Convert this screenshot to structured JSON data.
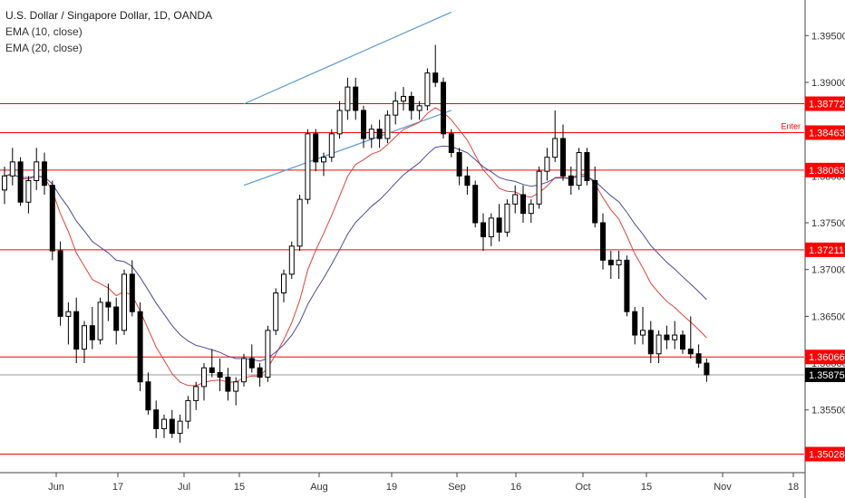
{
  "legend": {
    "title": "U.S. Dollar / Singapore Dollar, 1D, OANDA",
    "ema1": "EMA (10, close)",
    "ema2": "EMA (20, close)"
  },
  "colors": {
    "up": "#000000",
    "down": "#000000",
    "hline": "#ff0000",
    "ema_fast": "#e0433a",
    "ema_slow": "#4a4a9c",
    "channel": "#5b9bd5",
    "last_price_line": "#999999",
    "axis": "#444444"
  },
  "chart_data": {
    "type": "candlestick",
    "symbol": "U.S. Dollar / Singapore Dollar",
    "timeframe": "1D",
    "ylim": [
      1.3483,
      1.3988
    ],
    "x_ticks": [
      "Jun",
      "17",
      "Jul",
      "15",
      "Aug",
      "19",
      "Sep",
      "16",
      "Oct",
      "15",
      "Nov",
      "18"
    ],
    "y_ticks": [
      "1.39500",
      "1.39000",
      "1.38500",
      "1.38000",
      "1.37500",
      "1.37000",
      "1.36500",
      "1.36000",
      "1.35500"
    ],
    "y_tick_values": [
      1.395,
      1.39,
      1.385,
      1.38,
      1.375,
      1.37,
      1.365,
      1.36,
      1.355
    ],
    "levels": [
      {
        "value": 1.38772,
        "label": "1.38772"
      },
      {
        "value": 1.38463,
        "label": "1.38463",
        "annotation": "Enter"
      },
      {
        "value": 1.38063,
        "label": "1.38063"
      },
      {
        "value": 1.37211,
        "label": "1.37211"
      },
      {
        "value": 1.36066,
        "label": "1.36066"
      },
      {
        "value": 1.35028,
        "label": "1.35028"
      }
    ],
    "last_price": {
      "value": 1.35875,
      "label": "1.35875"
    },
    "channel": [
      {
        "from": [
          30,
          1.3877
        ],
        "to": [
          56,
          1.3975
        ]
      },
      {
        "from": [
          30,
          1.379
        ],
        "to": [
          56,
          1.387
        ]
      }
    ],
    "ohlc": [
      [
        1.3785,
        1.381,
        1.377,
        1.38
      ],
      [
        1.38,
        1.383,
        1.379,
        1.3815
      ],
      [
        1.3815,
        1.382,
        1.3768,
        1.3772
      ],
      [
        1.3772,
        1.38,
        1.376,
        1.3795
      ],
      [
        1.3795,
        1.383,
        1.3785,
        1.3815
      ],
      [
        1.3815,
        1.3825,
        1.378,
        1.379
      ],
      [
        1.379,
        1.3795,
        1.371,
        1.372
      ],
      [
        1.372,
        1.373,
        1.364,
        1.365
      ],
      [
        1.365,
        1.3665,
        1.362,
        1.3655
      ],
      [
        1.3655,
        1.367,
        1.36,
        1.3615
      ],
      [
        1.3615,
        1.3645,
        1.36,
        1.364
      ],
      [
        1.364,
        1.366,
        1.3615,
        1.3625
      ],
      [
        1.3625,
        1.367,
        1.362,
        1.3665
      ],
      [
        1.3665,
        1.3685,
        1.3645,
        1.366
      ],
      [
        1.366,
        1.367,
        1.362,
        1.3635
      ],
      [
        1.3635,
        1.37,
        1.363,
        1.3695
      ],
      [
        1.3695,
        1.371,
        1.365,
        1.3655
      ],
      [
        1.3655,
        1.3665,
        1.357,
        1.358
      ],
      [
        1.358,
        1.359,
        1.3545,
        1.355
      ],
      [
        1.355,
        1.356,
        1.352,
        1.353
      ],
      [
        1.353,
        1.3545,
        1.352,
        1.354
      ],
      [
        1.354,
        1.355,
        1.352,
        1.3525
      ],
      [
        1.3525,
        1.3545,
        1.3515,
        1.3538
      ],
      [
        1.3538,
        1.3565,
        1.353,
        1.356
      ],
      [
        1.356,
        1.358,
        1.355,
        1.3575
      ],
      [
        1.3575,
        1.36,
        1.356,
        1.3595
      ],
      [
        1.3595,
        1.3615,
        1.3585,
        1.359
      ],
      [
        1.359,
        1.3605,
        1.357,
        1.3585
      ],
      [
        1.3585,
        1.3595,
        1.356,
        1.357
      ],
      [
        1.357,
        1.3585,
        1.3555,
        1.358
      ],
      [
        1.358,
        1.361,
        1.3575,
        1.3605
      ],
      [
        1.3605,
        1.362,
        1.359,
        1.3595
      ],
      [
        1.3595,
        1.36,
        1.3575,
        1.3585
      ],
      [
        1.3585,
        1.364,
        1.358,
        1.3635
      ],
      [
        1.3635,
        1.368,
        1.363,
        1.3675
      ],
      [
        1.3675,
        1.37,
        1.3665,
        1.3695
      ],
      [
        1.3695,
        1.373,
        1.369,
        1.3725
      ],
      [
        1.3725,
        1.378,
        1.372,
        1.3775
      ],
      [
        1.3775,
        1.385,
        1.377,
        1.3845
      ],
      [
        1.3845,
        1.385,
        1.3805,
        1.3815
      ],
      [
        1.3815,
        1.3825,
        1.38,
        1.382
      ],
      [
        1.382,
        1.385,
        1.3815,
        1.3845
      ],
      [
        1.3845,
        1.388,
        1.384,
        1.387
      ],
      [
        1.387,
        1.3905,
        1.386,
        1.3895
      ],
      [
        1.3895,
        1.3905,
        1.386,
        1.387
      ],
      [
        1.387,
        1.3875,
        1.383,
        1.384
      ],
      [
        1.384,
        1.3855,
        1.383,
        1.385
      ],
      [
        1.385,
        1.386,
        1.383,
        1.384
      ],
      [
        1.384,
        1.387,
        1.3835,
        1.3865
      ],
      [
        1.3865,
        1.389,
        1.3855,
        1.388
      ],
      [
        1.388,
        1.3895,
        1.387,
        1.3885
      ],
      [
        1.3885,
        1.389,
        1.386,
        1.387
      ],
      [
        1.387,
        1.388,
        1.386,
        1.3875
      ],
      [
        1.3875,
        1.3915,
        1.387,
        1.391
      ],
      [
        1.391,
        1.394,
        1.3895,
        1.39
      ],
      [
        1.39,
        1.3905,
        1.384,
        1.3845
      ],
      [
        1.3845,
        1.385,
        1.382,
        1.3825
      ],
      [
        1.3825,
        1.383,
        1.379,
        1.38
      ],
      [
        1.38,
        1.381,
        1.378,
        1.379
      ],
      [
        1.379,
        1.3795,
        1.3745,
        1.375
      ],
      [
        1.375,
        1.376,
        1.372,
        1.3735
      ],
      [
        1.3735,
        1.376,
        1.3725,
        1.3755
      ],
      [
        1.3755,
        1.377,
        1.373,
        1.374
      ],
      [
        1.374,
        1.3775,
        1.3735,
        1.377
      ],
      [
        1.377,
        1.379,
        1.376,
        1.378
      ],
      [
        1.378,
        1.379,
        1.375,
        1.376
      ],
      [
        1.376,
        1.3775,
        1.375,
        1.377
      ],
      [
        1.377,
        1.381,
        1.3765,
        1.3805
      ],
      [
        1.3805,
        1.383,
        1.3795,
        1.382
      ],
      [
        1.382,
        1.387,
        1.3815,
        1.384
      ],
      [
        1.384,
        1.3855,
        1.3795,
        1.38
      ],
      [
        1.38,
        1.381,
        1.378,
        1.379
      ],
      [
        1.379,
        1.383,
        1.3785,
        1.3825
      ],
      [
        1.3825,
        1.383,
        1.379,
        1.3795
      ],
      [
        1.3795,
        1.381,
        1.3745,
        1.375
      ],
      [
        1.375,
        1.376,
        1.37,
        1.371
      ],
      [
        1.371,
        1.372,
        1.369,
        1.3705
      ],
      [
        1.3705,
        1.372,
        1.369,
        1.371
      ],
      [
        1.371,
        1.3715,
        1.365,
        1.3655
      ],
      [
        1.3655,
        1.366,
        1.362,
        1.363
      ],
      [
        1.363,
        1.366,
        1.362,
        1.3635
      ],
      [
        1.3635,
        1.3645,
        1.36,
        1.361
      ],
      [
        1.361,
        1.3635,
        1.36,
        1.363
      ],
      [
        1.363,
        1.364,
        1.3615,
        1.3625
      ],
      [
        1.3625,
        1.3645,
        1.3615,
        1.363
      ],
      [
        1.363,
        1.3635,
        1.361,
        1.3615
      ],
      [
        1.3615,
        1.365,
        1.3605,
        1.361
      ],
      [
        1.361,
        1.362,
        1.3595,
        1.36
      ],
      [
        1.36,
        1.3605,
        1.358,
        1.35875
      ]
    ]
  }
}
